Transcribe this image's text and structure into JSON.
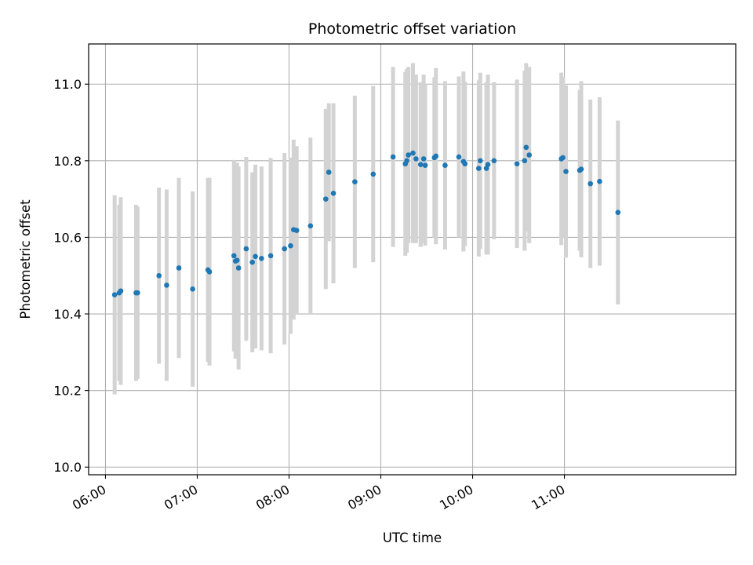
{
  "chart_data": {
    "type": "scatter",
    "title": "Photometric offset variation",
    "xlabel": "UTC time",
    "ylabel": "Photometric offset",
    "x_unit": "hours UTC",
    "xlim": [
      "05:49",
      "12:52"
    ],
    "ylim": [
      9.98,
      11.105
    ],
    "x_ticks": [
      "06:00",
      "07:00",
      "08:00",
      "09:00",
      "10:00",
      "11:00"
    ],
    "y_ticks": [
      10.0,
      10.2,
      10.4,
      10.6,
      10.8,
      11.0
    ],
    "grid": true,
    "colors": {
      "point": "#1f77b4",
      "errorbar": "#d3d3d3",
      "grid": "#b0b0b0",
      "axis": "#000000"
    },
    "series": [
      {
        "x": [
          "06:06",
          "06:09",
          "06:10",
          "06:20",
          "06:21",
          "06:35",
          "06:40",
          "06:48",
          "06:57",
          "07:07",
          "07:08",
          "07:24",
          "07:25",
          "07:26",
          "07:27",
          "07:32",
          "07:36",
          "07:38",
          "07:42",
          "07:48",
          "07:57",
          "08:01",
          "08:03",
          "08:05",
          "08:14",
          "08:24",
          "08:26",
          "08:29",
          "08:43",
          "08:55",
          "09:08",
          "09:16",
          "09:17",
          "09:18",
          "09:21",
          "09:23",
          "09:26",
          "09:28",
          "09:29",
          "09:35",
          "09:36",
          "09:42",
          "09:51",
          "09:54",
          "09:55",
          "10:04",
          "10:05",
          "10:09",
          "10:10",
          "10:14",
          "10:29",
          "10:34",
          "10:35",
          "10:37",
          "10:58",
          "10:59",
          "11:01",
          "11:10",
          "11:11",
          "11:17",
          "11:23",
          "11:35"
        ],
        "y": [
          10.45,
          10.455,
          10.46,
          10.455,
          10.455,
          10.5,
          10.475,
          10.52,
          10.465,
          10.515,
          10.51,
          10.552,
          10.538,
          10.54,
          10.52,
          10.57,
          10.535,
          10.55,
          10.545,
          10.552,
          10.57,
          10.578,
          10.62,
          10.618,
          10.63,
          10.7,
          10.77,
          10.715,
          10.745,
          10.765,
          10.81,
          10.792,
          10.8,
          10.815,
          10.82,
          10.805,
          10.79,
          10.805,
          10.788,
          10.808,
          10.812,
          10.788,
          10.81,
          10.798,
          10.792,
          10.78,
          10.8,
          10.78,
          10.79,
          10.8,
          10.792,
          10.8,
          10.835,
          10.815,
          10.805,
          10.808,
          10.772,
          10.775,
          10.778,
          10.74,
          10.746,
          10.665
        ],
        "yerr": [
          0.26,
          0.23,
          0.245,
          0.23,
          0.225,
          0.23,
          0.25,
          0.235,
          0.255,
          0.24,
          0.245,
          0.25,
          0.255,
          0.255,
          0.265,
          0.24,
          0.235,
          0.24,
          0.24,
          0.255,
          0.25,
          0.23,
          0.235,
          0.22,
          0.23,
          0.235,
          0.18,
          0.235,
          0.225,
          0.23,
          0.235,
          0.24,
          0.24,
          0.23,
          0.235,
          0.22,
          0.215,
          0.22,
          0.21,
          0.21,
          0.23,
          0.22,
          0.21,
          0.235,
          0.215,
          0.23,
          0.23,
          0.225,
          0.235,
          0.205,
          0.22,
          0.235,
          0.22,
          0.23,
          0.225,
          0.21,
          0.225,
          0.21,
          0.23,
          0.22,
          0.22,
          0.24
        ]
      }
    ]
  }
}
